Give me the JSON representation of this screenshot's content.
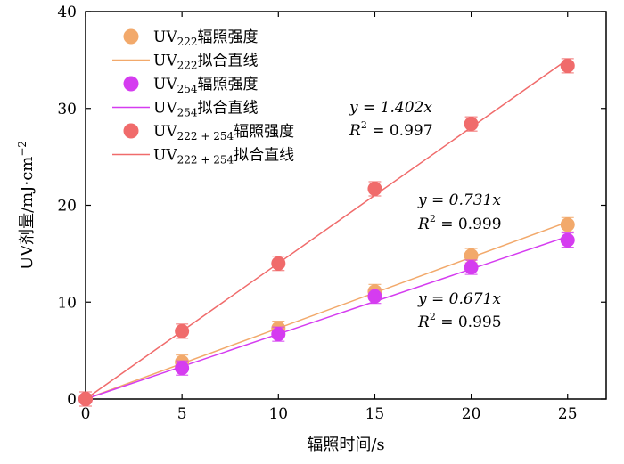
{
  "chart_data": {
    "type": "scatter",
    "xlabel": "辐照时间/s",
    "ylabel": "UV剂量/mJ·cm",
    "ylabel_sup": "−2",
    "xlim": [
      0,
      27
    ],
    "ylim": [
      0,
      40
    ],
    "xticks": [
      "0",
      "5",
      "10",
      "15",
      "20",
      "25"
    ],
    "yticks": [
      "0",
      "10",
      "20",
      "30",
      "40"
    ],
    "xtick_values": [
      0,
      5,
      10,
      15,
      20,
      25
    ],
    "ytick_values": [
      0,
      10,
      20,
      30,
      40
    ],
    "grid": false,
    "legend_position": "top-left",
    "series": [
      {
        "key": "uv222",
        "color": "#F2A96B",
        "marker_label_main": "UV",
        "marker_label_sub": "222",
        "marker_label_tail": "辐照强度",
        "fit_label_main": "UV",
        "fit_label_sub": "222",
        "fit_label_tail": "拟合直线",
        "x": [
          0,
          5,
          10,
          15,
          20,
          25
        ],
        "y": [
          0,
          3.8,
          7.3,
          11.1,
          14.8,
          18.0
        ],
        "fit_slope": 0.731,
        "equation": "y = 0.731x",
        "r2_value": "= 0.999"
      },
      {
        "key": "uv254",
        "color": "#D53CF0",
        "marker_label_main": "UV",
        "marker_label_sub": "254",
        "marker_label_tail": "辐照强度",
        "fit_label_main": "UV",
        "fit_label_sub": "254",
        "fit_label_tail": "拟合直线",
        "x": [
          0,
          5,
          10,
          15,
          20,
          25
        ],
        "y": [
          0,
          3.2,
          6.7,
          10.6,
          13.6,
          16.4
        ],
        "fit_slope": 0.671,
        "equation": "y = 0.671x",
        "r2_value": "= 0.995"
      },
      {
        "key": "uv222_254",
        "color": "#F06B6B",
        "marker_label_main": "UV",
        "marker_label_sub": "222 + 254",
        "marker_label_tail": "辐照强度",
        "fit_label_main": "UV",
        "fit_label_sub": "222 + 254",
        "fit_label_tail": "拟合直线",
        "x": [
          0,
          5,
          10,
          15,
          20,
          25
        ],
        "y": [
          0,
          7.0,
          14.0,
          21.7,
          28.4,
          34.4
        ],
        "fit_slope": 1.402,
        "equation": "y = 1.402x",
        "r2_value": "= 0.997"
      }
    ]
  }
}
